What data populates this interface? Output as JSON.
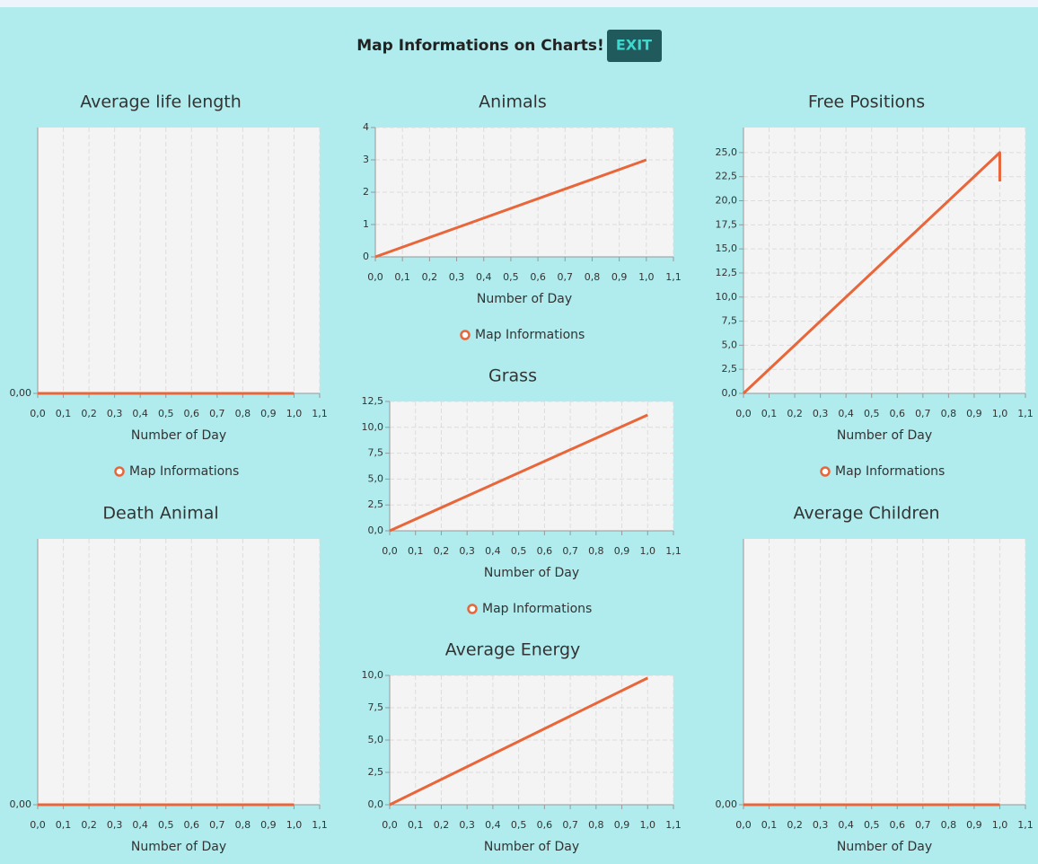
{
  "header": {
    "title": "Map Informations on Charts!",
    "button": "EXIT"
  },
  "chart_data": [
    {
      "type": "line",
      "title": "Average life length",
      "x_label": "Number of Day",
      "x": [
        0,
        1
      ],
      "series": [
        {
          "name": "Map Informations",
          "color": "#e8663a",
          "values": [
            0,
            0
          ]
        }
      ],
      "xlim": [
        0,
        1.1
      ],
      "ylim": [
        0,
        1
      ],
      "xticks": [
        {
          "value": 0,
          "label": "0,0"
        },
        {
          "value": 0.1,
          "label": "0,1"
        },
        {
          "value": 0.2,
          "label": "0,2"
        },
        {
          "value": 0.3,
          "label": "0,3"
        },
        {
          "value": 0.4,
          "label": "0,4"
        },
        {
          "value": 0.5,
          "label": "0,5"
        },
        {
          "value": 0.6,
          "label": "0,6"
        },
        {
          "value": 0.7,
          "label": "0,7"
        },
        {
          "value": 0.8,
          "label": "0,8"
        },
        {
          "value": 0.9,
          "label": "0,9"
        },
        {
          "value": 1,
          "label": "1,0"
        },
        {
          "value": 1.1,
          "label": "1,1"
        }
      ],
      "yticks": [
        {
          "value": 0,
          "label": "0,00"
        }
      ],
      "grid": true
    },
    {
      "type": "line",
      "title": "Animals",
      "x_label": "Number of Day",
      "x": [
        0,
        1
      ],
      "series": [
        {
          "name": "Map Informations",
          "color": "#e8663a",
          "values": [
            0,
            3
          ]
        }
      ],
      "xlim": [
        0,
        1.1
      ],
      "ylim": [
        0,
        4
      ],
      "xticks": [
        {
          "value": 0,
          "label": "0,0"
        },
        {
          "value": 0.1,
          "label": "0,1"
        },
        {
          "value": 0.2,
          "label": "0,2"
        },
        {
          "value": 0.3,
          "label": "0,3"
        },
        {
          "value": 0.4,
          "label": "0,4"
        },
        {
          "value": 0.5,
          "label": "0,5"
        },
        {
          "value": 0.6,
          "label": "0,6"
        },
        {
          "value": 0.7,
          "label": "0,7"
        },
        {
          "value": 0.8,
          "label": "0,8"
        },
        {
          "value": 0.9,
          "label": "0,9"
        },
        {
          "value": 1,
          "label": "1,0"
        },
        {
          "value": 1.1,
          "label": "1,1"
        }
      ],
      "yticks": [
        0,
        1,
        2,
        3,
        4
      ],
      "grid": true
    },
    {
      "type": "line",
      "title": "Free Positions",
      "x_label": "Number of Day",
      "x": [
        0,
        1,
        1
      ],
      "series": [
        {
          "name": "Map Informations",
          "color": "#e8663a",
          "values": [
            0,
            25,
            22
          ]
        }
      ],
      "xlim": [
        0,
        1.1
      ],
      "ylim": [
        0,
        27.6
      ],
      "xticks": [
        {
          "value": 0,
          "label": "0,0"
        },
        {
          "value": 0.1,
          "label": "0,1"
        },
        {
          "value": 0.2,
          "label": "0,2"
        },
        {
          "value": 0.3,
          "label": "0,3"
        },
        {
          "value": 0.4,
          "label": "0,4"
        },
        {
          "value": 0.5,
          "label": "0,5"
        },
        {
          "value": 0.6,
          "label": "0,6"
        },
        {
          "value": 0.7,
          "label": "0,7"
        },
        {
          "value": 0.8,
          "label": "0,8"
        },
        {
          "value": 0.9,
          "label": "0,9"
        },
        {
          "value": 1,
          "label": "1,0"
        },
        {
          "value": 1.1,
          "label": "1,1"
        }
      ],
      "yticks": [
        {
          "value": 0,
          "label": "0,0"
        },
        {
          "value": 2.5,
          "label": "2,5"
        },
        {
          "value": 5,
          "label": "5,0"
        },
        {
          "value": 7.5,
          "label": "7,5"
        },
        {
          "value": 10,
          "label": "10,0"
        },
        {
          "value": 12.5,
          "label": "12,5"
        },
        {
          "value": 15,
          "label": "15,0"
        },
        {
          "value": 17.5,
          "label": "17,5"
        },
        {
          "value": 20,
          "label": "20,0"
        },
        {
          "value": 22.5,
          "label": "22,5"
        },
        {
          "value": 25,
          "label": "25,0"
        }
      ],
      "grid": true
    },
    {
      "type": "line",
      "title": "Grass",
      "x_label": "Number of Day",
      "x": [
        0,
        1
      ],
      "series": [
        {
          "name": "Map Informations",
          "color": "#e8663a",
          "values": [
            0,
            11.2
          ]
        }
      ],
      "xlim": [
        0,
        1.1
      ],
      "ylim": [
        0,
        12.5
      ],
      "xticks": [
        {
          "value": 0,
          "label": "0,0"
        },
        {
          "value": 0.1,
          "label": "0,1"
        },
        {
          "value": 0.2,
          "label": "0,2"
        },
        {
          "value": 0.3,
          "label": "0,3"
        },
        {
          "value": 0.4,
          "label": "0,4"
        },
        {
          "value": 0.5,
          "label": "0,5"
        },
        {
          "value": 0.6,
          "label": "0,6"
        },
        {
          "value": 0.7,
          "label": "0,7"
        },
        {
          "value": 0.8,
          "label": "0,8"
        },
        {
          "value": 0.9,
          "label": "0,9"
        },
        {
          "value": 1,
          "label": "1,0"
        },
        {
          "value": 1.1,
          "label": "1,1"
        }
      ],
      "yticks": [
        {
          "value": 0,
          "label": "0,0"
        },
        {
          "value": 2.5,
          "label": "2,5"
        },
        {
          "value": 5,
          "label": "5,0"
        },
        {
          "value": 7.5,
          "label": "7,5"
        },
        {
          "value": 10,
          "label": "10,0"
        },
        {
          "value": 12.5,
          "label": "12,5"
        }
      ],
      "grid": true
    },
    {
      "type": "line",
      "title": "Death Animal",
      "x_label": "Number of Day",
      "x": [
        0,
        1
      ],
      "series": [
        {
          "color": "#e8663a",
          "values": [
            0,
            0
          ]
        }
      ],
      "xlim": [
        0,
        1.1
      ],
      "ylim": [
        0,
        1
      ],
      "xticks": [
        {
          "value": 0,
          "label": "0,0"
        },
        {
          "value": 0.1,
          "label": "0,1"
        },
        {
          "value": 0.2,
          "label": "0,2"
        },
        {
          "value": 0.3,
          "label": "0,3"
        },
        {
          "value": 0.4,
          "label": "0,4"
        },
        {
          "value": 0.5,
          "label": "0,5"
        },
        {
          "value": 0.6,
          "label": "0,6"
        },
        {
          "value": 0.7,
          "label": "0,7"
        },
        {
          "value": 0.8,
          "label": "0,8"
        },
        {
          "value": 0.9,
          "label": "0,9"
        },
        {
          "value": 1,
          "label": "1,0"
        },
        {
          "value": 1.1,
          "label": "1,1"
        }
      ],
      "yticks": [
        {
          "value": 0,
          "label": "0,00"
        }
      ],
      "grid": true
    },
    {
      "type": "line",
      "title": "Average Energy",
      "x_label": "Number of Day",
      "x": [
        0,
        1
      ],
      "series": [
        {
          "color": "#e8663a",
          "values": [
            0,
            9.8
          ]
        }
      ],
      "xlim": [
        0,
        1.1
      ],
      "ylim": [
        0,
        10
      ],
      "xticks": [
        {
          "value": 0,
          "label": "0,0"
        },
        {
          "value": 0.1,
          "label": "0,1"
        },
        {
          "value": 0.2,
          "label": "0,2"
        },
        {
          "value": 0.3,
          "label": "0,3"
        },
        {
          "value": 0.4,
          "label": "0,4"
        },
        {
          "value": 0.5,
          "label": "0,5"
        },
        {
          "value": 0.6,
          "label": "0,6"
        },
        {
          "value": 0.7,
          "label": "0,7"
        },
        {
          "value": 0.8,
          "label": "0,8"
        },
        {
          "value": 0.9,
          "label": "0,9"
        },
        {
          "value": 1,
          "label": "1,0"
        },
        {
          "value": 1.1,
          "label": "1,1"
        }
      ],
      "yticks": [
        {
          "value": 0,
          "label": "0,0"
        },
        {
          "value": 2.5,
          "label": "2,5"
        },
        {
          "value": 5,
          "label": "5,0"
        },
        {
          "value": 7.5,
          "label": "7,5"
        },
        {
          "value": 10,
          "label": "10,0"
        }
      ],
      "grid": true
    },
    {
      "type": "line",
      "title": "Average Children",
      "x_label": "Number of Day",
      "x": [
        0,
        1
      ],
      "series": [
        {
          "color": "#e8663a",
          "values": [
            0,
            0
          ]
        }
      ],
      "xlim": [
        0,
        1.1
      ],
      "ylim": [
        0,
        1
      ],
      "xticks": [
        {
          "value": 0,
          "label": "0,0"
        },
        {
          "value": 0.1,
          "label": "0,1"
        },
        {
          "value": 0.2,
          "label": "0,2"
        },
        {
          "value": 0.3,
          "label": "0,3"
        },
        {
          "value": 0.4,
          "label": "0,4"
        },
        {
          "value": 0.5,
          "label": "0,5"
        },
        {
          "value": 0.6,
          "label": "0,6"
        },
        {
          "value": 0.7,
          "label": "0,7"
        },
        {
          "value": 0.8,
          "label": "0,8"
        },
        {
          "value": 0.9,
          "label": "0,9"
        },
        {
          "value": 1,
          "label": "1,0"
        },
        {
          "value": 1.1,
          "label": "1,1"
        }
      ],
      "yticks": [
        {
          "value": 0,
          "label": "0,00"
        }
      ],
      "grid": true
    }
  ]
}
